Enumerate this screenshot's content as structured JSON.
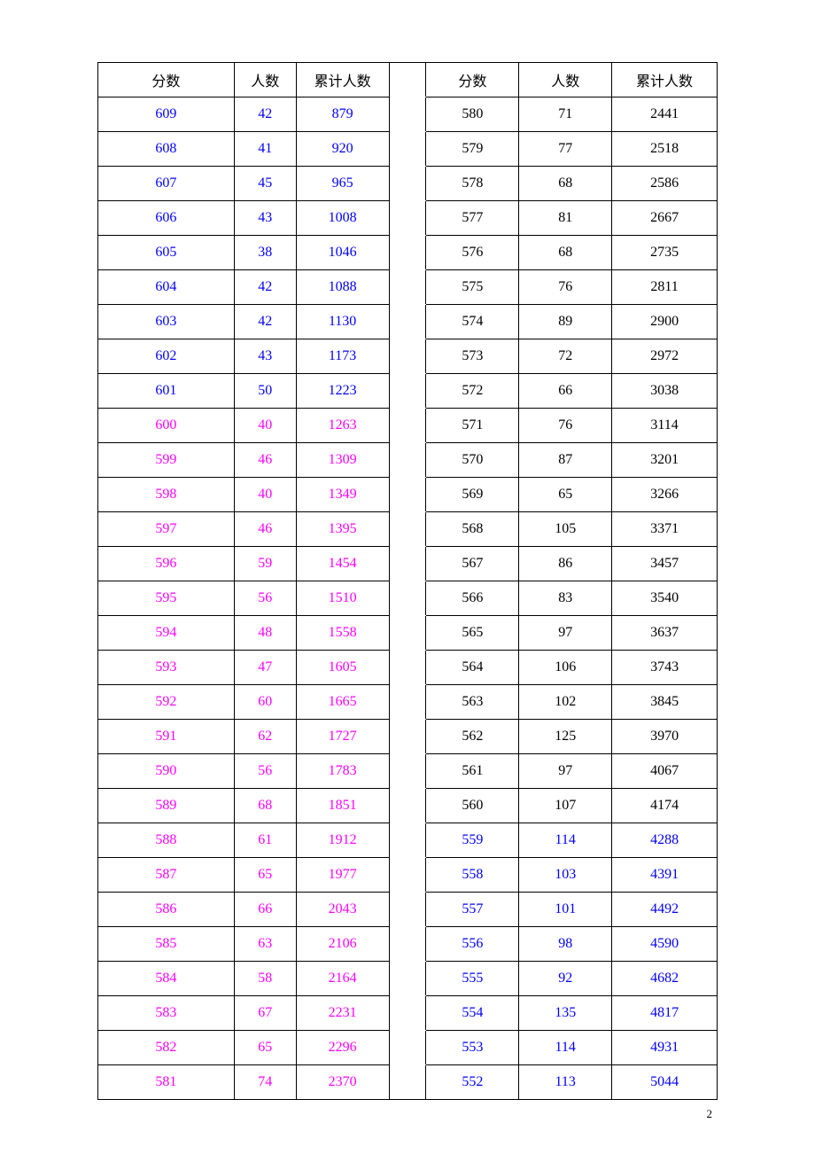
{
  "colors": {
    "blue": "#0000ff",
    "magenta": "#ff00ff",
    "black": "#000000"
  },
  "headers": {
    "score": "分数",
    "count": "人数",
    "cumulative": "累计人数"
  },
  "rows": [
    {
      "l": {
        "score": 609,
        "count": 42,
        "cum": 879,
        "color": "blue"
      },
      "r": {
        "score": 580,
        "count": 71,
        "cum": 2441,
        "color": "black"
      }
    },
    {
      "l": {
        "score": 608,
        "count": 41,
        "cum": 920,
        "color": "blue"
      },
      "r": {
        "score": 579,
        "count": 77,
        "cum": 2518,
        "color": "black"
      }
    },
    {
      "l": {
        "score": 607,
        "count": 45,
        "cum": 965,
        "color": "blue"
      },
      "r": {
        "score": 578,
        "count": 68,
        "cum": 2586,
        "color": "black"
      }
    },
    {
      "l": {
        "score": 606,
        "count": 43,
        "cum": 1008,
        "color": "blue"
      },
      "r": {
        "score": 577,
        "count": 81,
        "cum": 2667,
        "color": "black"
      }
    },
    {
      "l": {
        "score": 605,
        "count": 38,
        "cum": 1046,
        "color": "blue"
      },
      "r": {
        "score": 576,
        "count": 68,
        "cum": 2735,
        "color": "black"
      }
    },
    {
      "l": {
        "score": 604,
        "count": 42,
        "cum": 1088,
        "color": "blue"
      },
      "r": {
        "score": 575,
        "count": 76,
        "cum": 2811,
        "color": "black"
      }
    },
    {
      "l": {
        "score": 603,
        "count": 42,
        "cum": 1130,
        "color": "blue"
      },
      "r": {
        "score": 574,
        "count": 89,
        "cum": 2900,
        "color": "black"
      }
    },
    {
      "l": {
        "score": 602,
        "count": 43,
        "cum": 1173,
        "color": "blue"
      },
      "r": {
        "score": 573,
        "count": 72,
        "cum": 2972,
        "color": "black"
      }
    },
    {
      "l": {
        "score": 601,
        "count": 50,
        "cum": 1223,
        "color": "blue"
      },
      "r": {
        "score": 572,
        "count": 66,
        "cum": 3038,
        "color": "black"
      }
    },
    {
      "l": {
        "score": 600,
        "count": 40,
        "cum": 1263,
        "color": "magenta"
      },
      "r": {
        "score": 571,
        "count": 76,
        "cum": 3114,
        "color": "black"
      }
    },
    {
      "l": {
        "score": 599,
        "count": 46,
        "cum": 1309,
        "color": "magenta"
      },
      "r": {
        "score": 570,
        "count": 87,
        "cum": 3201,
        "color": "black"
      }
    },
    {
      "l": {
        "score": 598,
        "count": 40,
        "cum": 1349,
        "color": "magenta"
      },
      "r": {
        "score": 569,
        "count": 65,
        "cum": 3266,
        "color": "black"
      }
    },
    {
      "l": {
        "score": 597,
        "count": 46,
        "cum": 1395,
        "color": "magenta"
      },
      "r": {
        "score": 568,
        "count": 105,
        "cum": 3371,
        "color": "black"
      }
    },
    {
      "l": {
        "score": 596,
        "count": 59,
        "cum": 1454,
        "color": "magenta"
      },
      "r": {
        "score": 567,
        "count": 86,
        "cum": 3457,
        "color": "black"
      }
    },
    {
      "l": {
        "score": 595,
        "count": 56,
        "cum": 1510,
        "color": "magenta"
      },
      "r": {
        "score": 566,
        "count": 83,
        "cum": 3540,
        "color": "black"
      }
    },
    {
      "l": {
        "score": 594,
        "count": 48,
        "cum": 1558,
        "color": "magenta"
      },
      "r": {
        "score": 565,
        "count": 97,
        "cum": 3637,
        "color": "black"
      }
    },
    {
      "l": {
        "score": 593,
        "count": 47,
        "cum": 1605,
        "color": "magenta"
      },
      "r": {
        "score": 564,
        "count": 106,
        "cum": 3743,
        "color": "black"
      }
    },
    {
      "l": {
        "score": 592,
        "count": 60,
        "cum": 1665,
        "color": "magenta"
      },
      "r": {
        "score": 563,
        "count": 102,
        "cum": 3845,
        "color": "black"
      }
    },
    {
      "l": {
        "score": 591,
        "count": 62,
        "cum": 1727,
        "color": "magenta"
      },
      "r": {
        "score": 562,
        "count": 125,
        "cum": 3970,
        "color": "black"
      }
    },
    {
      "l": {
        "score": 590,
        "count": 56,
        "cum": 1783,
        "color": "magenta"
      },
      "r": {
        "score": 561,
        "count": 97,
        "cum": 4067,
        "color": "black"
      }
    },
    {
      "l": {
        "score": 589,
        "count": 68,
        "cum": 1851,
        "color": "magenta"
      },
      "r": {
        "score": 560,
        "count": 107,
        "cum": 4174,
        "color": "black"
      }
    },
    {
      "l": {
        "score": 588,
        "count": 61,
        "cum": 1912,
        "color": "magenta"
      },
      "r": {
        "score": 559,
        "count": 114,
        "cum": 4288,
        "color": "blue"
      }
    },
    {
      "l": {
        "score": 587,
        "count": 65,
        "cum": 1977,
        "color": "magenta"
      },
      "r": {
        "score": 558,
        "count": 103,
        "cum": 4391,
        "color": "blue"
      }
    },
    {
      "l": {
        "score": 586,
        "count": 66,
        "cum": 2043,
        "color": "magenta"
      },
      "r": {
        "score": 557,
        "count": 101,
        "cum": 4492,
        "color": "blue"
      }
    },
    {
      "l": {
        "score": 585,
        "count": 63,
        "cum": 2106,
        "color": "magenta"
      },
      "r": {
        "score": 556,
        "count": 98,
        "cum": 4590,
        "color": "blue"
      }
    },
    {
      "l": {
        "score": 584,
        "count": 58,
        "cum": 2164,
        "color": "magenta"
      },
      "r": {
        "score": 555,
        "count": 92,
        "cum": 4682,
        "color": "blue"
      }
    },
    {
      "l": {
        "score": 583,
        "count": 67,
        "cum": 2231,
        "color": "magenta"
      },
      "r": {
        "score": 554,
        "count": 135,
        "cum": 4817,
        "color": "blue"
      }
    },
    {
      "l": {
        "score": 582,
        "count": 65,
        "cum": 2296,
        "color": "magenta"
      },
      "r": {
        "score": 553,
        "count": 114,
        "cum": 4931,
        "color": "blue"
      }
    },
    {
      "l": {
        "score": 581,
        "count": 74,
        "cum": 2370,
        "color": "magenta"
      },
      "r": {
        "score": 552,
        "count": 113,
        "cum": 5044,
        "color": "blue"
      }
    }
  ],
  "pageNumber": "2"
}
